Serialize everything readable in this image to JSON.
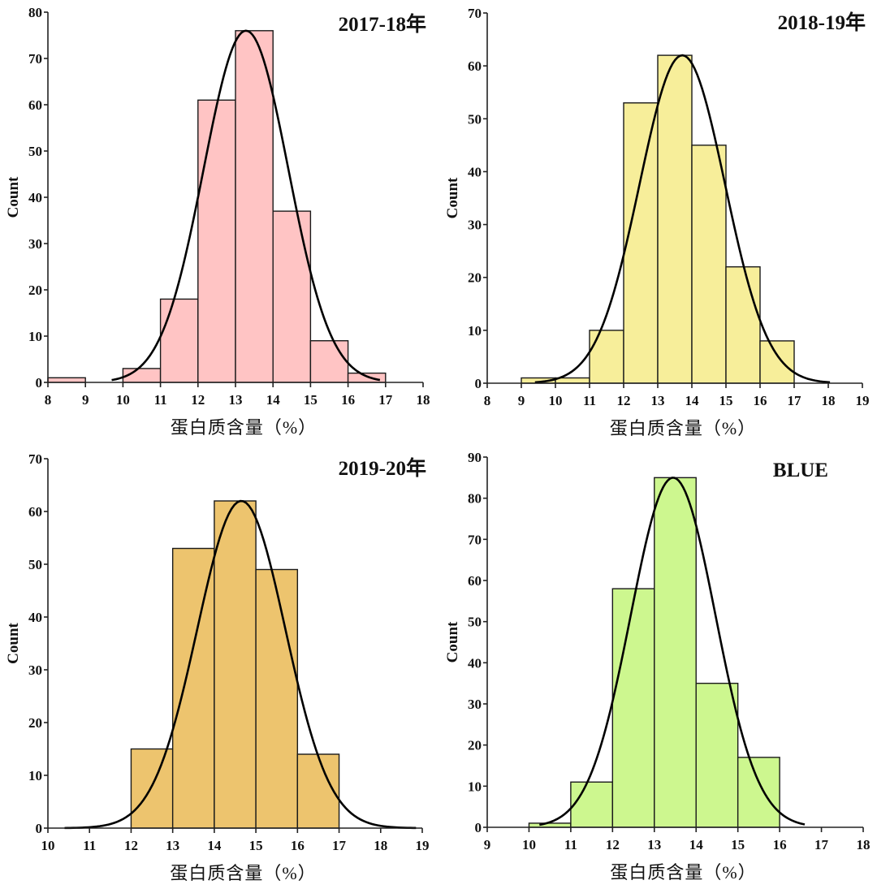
{
  "chart_data": [
    {
      "type": "bar",
      "subtype": "histogram-with-normal-fit",
      "title": "2017-18年",
      "xlabel": "蛋白质含量（%）",
      "ylabel": "Count",
      "xlim": [
        8,
        18
      ],
      "ylim": [
        0,
        80
      ],
      "xticks": [
        "8",
        "9",
        "10",
        "11",
        "12",
        "13",
        "14",
        "15",
        "16",
        "17",
        "18"
      ],
      "yticks": [
        "0",
        "10",
        "20",
        "30",
        "40",
        "50",
        "60",
        "70",
        "80"
      ],
      "bins": [
        [
          8,
          9
        ],
        [
          9,
          10
        ],
        [
          10,
          11
        ],
        [
          11,
          12
        ],
        [
          12,
          13
        ],
        [
          13,
          14
        ],
        [
          14,
          15
        ],
        [
          15,
          16
        ],
        [
          16,
          17
        ]
      ],
      "values": [
        1,
        0,
        3,
        18,
        61,
        76,
        37,
        9,
        2
      ],
      "fill_color": "#FFC4C4",
      "normal_curve": {
        "mean": 13.28,
        "peak": 76,
        "x_range": [
          9.7,
          16.85
        ]
      }
    },
    {
      "type": "bar",
      "subtype": "histogram-with-normal-fit",
      "title": "2018-19年",
      "xlabel": "蛋白质含量（%）",
      "ylabel": "Count",
      "xlim": [
        8,
        19
      ],
      "ylim": [
        0,
        70
      ],
      "xticks": [
        "8",
        "9",
        "10",
        "11",
        "12",
        "13",
        "14",
        "15",
        "16",
        "17",
        "18",
        "19"
      ],
      "yticks": [
        "0",
        "10",
        "20",
        "30",
        "40",
        "50",
        "60",
        "70"
      ],
      "bins": [
        [
          9,
          10
        ],
        [
          10,
          11
        ],
        [
          11,
          12
        ],
        [
          12,
          13
        ],
        [
          13,
          14
        ],
        [
          14,
          15
        ],
        [
          15,
          16
        ],
        [
          16,
          17
        ]
      ],
      "values": [
        1,
        1,
        10,
        53,
        62,
        45,
        22,
        8
      ],
      "fill_color": "#F7EE9A",
      "normal_curve": {
        "mean": 13.72,
        "peak": 62,
        "x_range": [
          9.4,
          18.05
        ]
      }
    },
    {
      "type": "bar",
      "subtype": "histogram-with-normal-fit",
      "title": "2019-20年",
      "xlabel": "蛋白质含量（%）",
      "ylabel": "Count",
      "xlim": [
        10,
        19
      ],
      "ylim": [
        0,
        70
      ],
      "xticks": [
        "10",
        "11",
        "12",
        "13",
        "14",
        "15",
        "16",
        "17",
        "18",
        "19"
      ],
      "yticks": [
        "0",
        "10",
        "20",
        "30",
        "40",
        "50",
        "60",
        "70"
      ],
      "bins": [
        [
          12,
          13
        ],
        [
          13,
          14
        ],
        [
          14,
          15
        ],
        [
          15,
          16
        ],
        [
          16,
          17
        ]
      ],
      "values": [
        15,
        53,
        62,
        49,
        14
      ],
      "fill_color": "#EDC46E",
      "normal_curve": {
        "mean": 14.65,
        "peak": 62,
        "x_range": [
          10.4,
          18.85
        ]
      }
    },
    {
      "type": "bar",
      "subtype": "histogram-with-normal-fit",
      "title": "BLUE",
      "xlabel": "蛋白质含量（%）",
      "ylabel": "Count",
      "xlim": [
        9,
        18
      ],
      "ylim": [
        0,
        90
      ],
      "xticks": [
        "9",
        "10",
        "11",
        "12",
        "13",
        "14",
        "15",
        "16",
        "17",
        "18"
      ],
      "yticks": [
        "0",
        "10",
        "20",
        "30",
        "40",
        "50",
        "60",
        "70",
        "80",
        "90"
      ],
      "bins": [
        [
          10,
          11
        ],
        [
          11,
          12
        ],
        [
          12,
          13
        ],
        [
          13,
          14
        ],
        [
          14,
          15
        ],
        [
          15,
          16
        ]
      ],
      "values": [
        1,
        11,
        58,
        85,
        35,
        17
      ],
      "fill_color": "#CDF78F",
      "normal_curve": {
        "mean": 13.45,
        "peak": 85,
        "x_range": [
          10.25,
          16.6
        ]
      }
    }
  ]
}
